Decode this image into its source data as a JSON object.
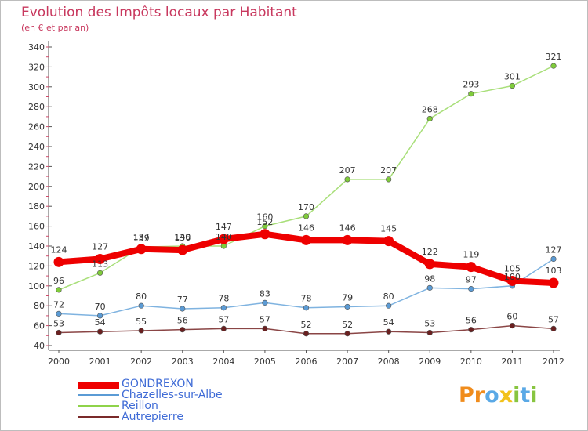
{
  "header": {
    "title": "Evolution des Impôts locaux par Habitant",
    "subtitle": "(en € et par an)"
  },
  "logo": {
    "text": "Proxiti",
    "letters": [
      {
        "ch": "P",
        "color": "#f08c1c"
      },
      {
        "ch": "r",
        "color": "#f08c1c"
      },
      {
        "ch": "o",
        "color": "#5aa9e6"
      },
      {
        "ch": "x",
        "color": "#f2c21a"
      },
      {
        "ch": "i",
        "color": "#88c540"
      },
      {
        "ch": "t",
        "color": "#5aa9e6"
      },
      {
        "ch": "i",
        "color": "#88c540"
      }
    ]
  },
  "chart_data": {
    "type": "line",
    "title": "Evolution des Impôts locaux par Habitant",
    "subtitle": "(en € et par an)",
    "x": [
      "2000",
      "2001",
      "2002",
      "2003",
      "2004",
      "2005",
      "2006",
      "2007",
      "2008",
      "2009",
      "2010",
      "2011",
      "2012"
    ],
    "ylim": [
      40,
      340
    ],
    "yticks": [
      40,
      60,
      80,
      100,
      120,
      140,
      160,
      180,
      200,
      220,
      240,
      260,
      280,
      300,
      320,
      340
    ],
    "grid": false,
    "legend_position": "bottom-left",
    "series": [
      {
        "name": "GONDREXON",
        "color": "#ee0000",
        "values": [
          124,
          127,
          137,
          136,
          147,
          152,
          146,
          146,
          145,
          122,
          119,
          105,
          103
        ],
        "labels": [
          "124",
          "127",
          "137",
          "136",
          "147",
          "152",
          "146",
          "146",
          "145",
          "122",
          "119",
          "105",
          "103"
        ]
      },
      {
        "name": "Chazelles-sur-Albe",
        "color": "#5b9bd5",
        "values": [
          72,
          70,
          80,
          77,
          78,
          83,
          78,
          79,
          80,
          98,
          97,
          100,
          127
        ],
        "labels": [
          "72",
          "70",
          "80",
          "77",
          "78",
          "83",
          "78",
          "79",
          "80",
          "98",
          "97",
          "100",
          "127"
        ]
      },
      {
        "name": "Reillon",
        "color": "#8fd34a",
        "values": [
          96,
          113,
          139,
          140,
          140,
          160,
          170,
          207,
          207,
          268,
          293,
          301,
          321
        ],
        "labels": [
          "96",
          "113",
          "139",
          "140",
          "140",
          "160",
          "170",
          "207",
          "207",
          "268",
          "293",
          "301",
          "321"
        ]
      },
      {
        "name": "Autrepierre",
        "color": "#7a2a2a",
        "values": [
          53,
          54,
          55,
          56,
          57,
          57,
          52,
          52,
          54,
          53,
          56,
          60,
          57
        ],
        "labels": [
          "53",
          "54",
          "55",
          "56",
          "57",
          "57",
          "52",
          "52",
          "54",
          "53",
          "56",
          "60",
          "57"
        ]
      }
    ]
  }
}
